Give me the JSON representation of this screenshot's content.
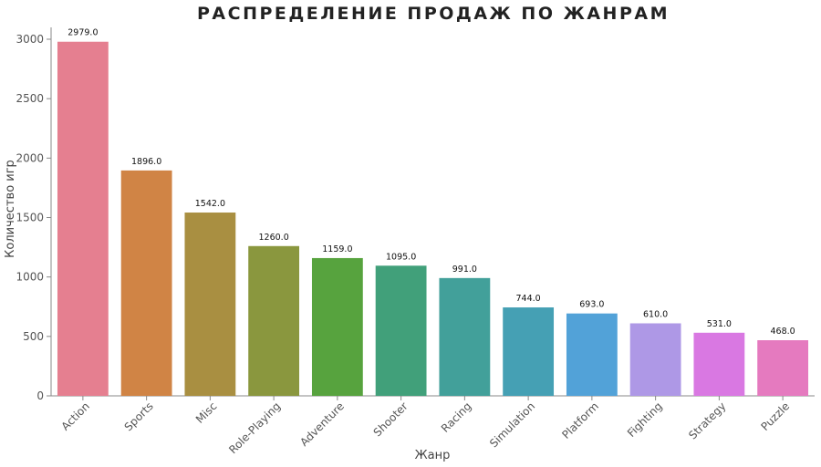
{
  "chart_data": {
    "type": "bar",
    "title": "РАСПРЕДЕЛЕНИЕ ПРОДАЖ ПО ЖАНРАМ",
    "xlabel": "Жанр",
    "ylabel": "Количество игр",
    "categories": [
      "Action",
      "Sports",
      "Misc",
      "Role-Playing",
      "Adventure",
      "Shooter",
      "Racing",
      "Simulation",
      "Platform",
      "Fighting",
      "Strategy",
      "Puzzle"
    ],
    "values": [
      2979,
      1896,
      1542,
      1260,
      1159,
      1095,
      991,
      744,
      693,
      610,
      531,
      468
    ],
    "value_labels": [
      "2979.0",
      "1896.0",
      "1542.0",
      "1260.0",
      "1159.0",
      "1095.0",
      "991.0",
      "744.0",
      "693.0",
      "610.0",
      "531.0",
      "468.0"
    ],
    "colors": [
      "#e57f90",
      "#d08445",
      "#a98f41",
      "#8a973e",
      "#57a33e",
      "#41a07a",
      "#42a09a",
      "#45a0b4",
      "#52a2d8",
      "#ae98e6",
      "#d978e2",
      "#e57abf"
    ],
    "yticks": [
      0,
      500,
      1000,
      1500,
      2000,
      2500,
      3000
    ],
    "ylim": [
      0,
      3100
    ],
    "grid": false,
    "legend": "none"
  }
}
